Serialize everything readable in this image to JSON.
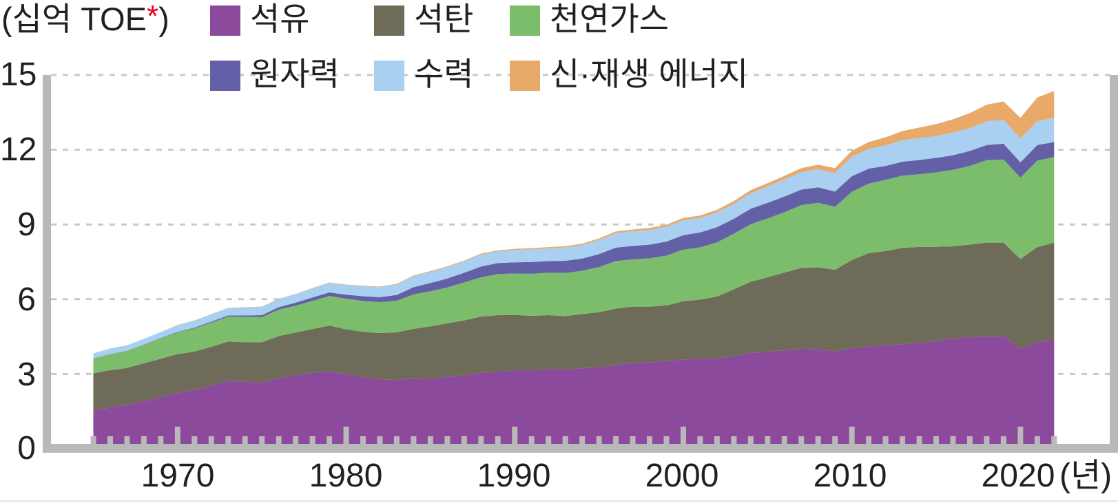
{
  "chart_data": {
    "type": "area",
    "stacked": true,
    "title": "",
    "unit_label": {
      "prefix": "(십억 TOE",
      "asterisk": "*",
      "suffix": ")"
    },
    "x_axis": {
      "unit": "(년)",
      "tick_labels": [
        "1970",
        "1980",
        "1990",
        "2000",
        "2010",
        "2020"
      ],
      "tick_years": [
        1970,
        1980,
        1990,
        2000,
        2010,
        2020
      ],
      "range": [
        1965,
        2022
      ],
      "minor_tick_interval_years": 1
    },
    "y_axis": {
      "tick_labels": [
        "0",
        "3",
        "6",
        "9",
        "12",
        "15"
      ],
      "tick_values": [
        0,
        3,
        6,
        9,
        12,
        15
      ],
      "range": [
        0,
        15
      ],
      "gridlines": "dashed"
    },
    "legend_position": "top",
    "axis_color": "#b9b9b9",
    "gridline_color": "#c9c9c9",
    "text_color": "#231f20",
    "asterisk_color": "#e60012",
    "years": [
      1965,
      1966,
      1967,
      1968,
      1969,
      1970,
      1971,
      1972,
      1973,
      1974,
      1975,
      1976,
      1977,
      1978,
      1979,
      1980,
      1981,
      1982,
      1983,
      1984,
      1985,
      1986,
      1987,
      1988,
      1989,
      1990,
      1991,
      1992,
      1993,
      1994,
      1995,
      1996,
      1997,
      1998,
      1999,
      2000,
      2001,
      2002,
      2003,
      2004,
      2005,
      2006,
      2007,
      2008,
      2009,
      2010,
      2011,
      2012,
      2013,
      2014,
      2015,
      2016,
      2017,
      2018,
      2019,
      2020,
      2021,
      2022
    ],
    "series": [
      {
        "name": "석유",
        "color": "#8b4a9c",
        "values": [
          1.53,
          1.65,
          1.76,
          1.91,
          2.07,
          2.25,
          2.36,
          2.53,
          2.72,
          2.68,
          2.66,
          2.84,
          2.94,
          3.05,
          3.1,
          2.98,
          2.87,
          2.78,
          2.76,
          2.81,
          2.8,
          2.89,
          2.94,
          3.04,
          3.09,
          3.15,
          3.15,
          3.19,
          3.16,
          3.23,
          3.27,
          3.36,
          3.44,
          3.46,
          3.53,
          3.58,
          3.6,
          3.63,
          3.7,
          3.84,
          3.89,
          3.95,
          4.01,
          3.99,
          3.91,
          4.03,
          4.09,
          4.14,
          4.19,
          4.24,
          4.33,
          4.42,
          4.47,
          4.5,
          4.53,
          4.01,
          4.26,
          4.4
        ]
      },
      {
        "name": "석탄",
        "color": "#6e6b59",
        "values": [
          1.49,
          1.5,
          1.48,
          1.52,
          1.54,
          1.55,
          1.54,
          1.56,
          1.58,
          1.59,
          1.61,
          1.68,
          1.72,
          1.75,
          1.84,
          1.81,
          1.82,
          1.86,
          1.91,
          2.0,
          2.11,
          2.14,
          2.21,
          2.26,
          2.27,
          2.22,
          2.18,
          2.17,
          2.16,
          2.17,
          2.21,
          2.26,
          2.26,
          2.24,
          2.22,
          2.34,
          2.38,
          2.48,
          2.7,
          2.86,
          2.99,
          3.12,
          3.24,
          3.29,
          3.27,
          3.54,
          3.76,
          3.79,
          3.87,
          3.86,
          3.77,
          3.7,
          3.72,
          3.77,
          3.74,
          3.6,
          3.83,
          3.87
        ]
      },
      {
        "name": "천연가스",
        "color": "#7cbd6c",
        "values": [
          0.59,
          0.64,
          0.68,
          0.74,
          0.81,
          0.87,
          0.93,
          0.97,
          1.0,
          1.02,
          1.01,
          1.06,
          1.08,
          1.13,
          1.19,
          1.23,
          1.24,
          1.24,
          1.27,
          1.38,
          1.41,
          1.44,
          1.52,
          1.58,
          1.65,
          1.66,
          1.69,
          1.7,
          1.73,
          1.74,
          1.81,
          1.91,
          1.9,
          1.94,
          2.0,
          2.07,
          2.1,
          2.17,
          2.23,
          2.31,
          2.36,
          2.42,
          2.53,
          2.59,
          2.53,
          2.74,
          2.79,
          2.86,
          2.9,
          2.92,
          2.99,
          3.07,
          3.16,
          3.31,
          3.34,
          3.27,
          3.47,
          3.44
        ]
      },
      {
        "name": "원자력",
        "color": "#6360a8",
        "values": [
          0.01,
          0.01,
          0.01,
          0.01,
          0.02,
          0.02,
          0.03,
          0.04,
          0.05,
          0.06,
          0.08,
          0.1,
          0.12,
          0.14,
          0.14,
          0.16,
          0.19,
          0.2,
          0.23,
          0.29,
          0.33,
          0.36,
          0.39,
          0.43,
          0.44,
          0.45,
          0.47,
          0.47,
          0.49,
          0.49,
          0.52,
          0.54,
          0.54,
          0.55,
          0.56,
          0.58,
          0.6,
          0.61,
          0.6,
          0.62,
          0.63,
          0.63,
          0.62,
          0.62,
          0.61,
          0.63,
          0.6,
          0.56,
          0.56,
          0.57,
          0.58,
          0.59,
          0.6,
          0.61,
          0.63,
          0.61,
          0.63,
          0.6
        ]
      },
      {
        "name": "수력",
        "color": "#a9d0f0",
        "values": [
          0.21,
          0.22,
          0.22,
          0.23,
          0.24,
          0.27,
          0.28,
          0.29,
          0.29,
          0.32,
          0.33,
          0.33,
          0.34,
          0.37,
          0.39,
          0.39,
          0.4,
          0.41,
          0.43,
          0.44,
          0.45,
          0.46,
          0.46,
          0.48,
          0.47,
          0.5,
          0.51,
          0.51,
          0.54,
          0.54,
          0.57,
          0.58,
          0.59,
          0.59,
          0.6,
          0.6,
          0.59,
          0.6,
          0.6,
          0.63,
          0.66,
          0.69,
          0.7,
          0.73,
          0.74,
          0.78,
          0.79,
          0.83,
          0.86,
          0.88,
          0.88,
          0.91,
          0.92,
          0.95,
          0.96,
          0.97,
          0.96,
          0.97
        ]
      },
      {
        "name": "신·재생 에너지",
        "color": "#e9a96b",
        "values": [
          0.0,
          0.0,
          0.0,
          0.0,
          0.0,
          0.01,
          0.01,
          0.01,
          0.01,
          0.01,
          0.01,
          0.01,
          0.01,
          0.01,
          0.01,
          0.02,
          0.02,
          0.02,
          0.02,
          0.03,
          0.03,
          0.03,
          0.03,
          0.04,
          0.04,
          0.04,
          0.05,
          0.05,
          0.05,
          0.06,
          0.06,
          0.07,
          0.07,
          0.08,
          0.08,
          0.09,
          0.09,
          0.1,
          0.11,
          0.12,
          0.13,
          0.14,
          0.16,
          0.18,
          0.2,
          0.24,
          0.28,
          0.32,
          0.37,
          0.42,
          0.48,
          0.53,
          0.6,
          0.67,
          0.74,
          0.82,
          0.95,
          1.08
        ]
      }
    ]
  }
}
